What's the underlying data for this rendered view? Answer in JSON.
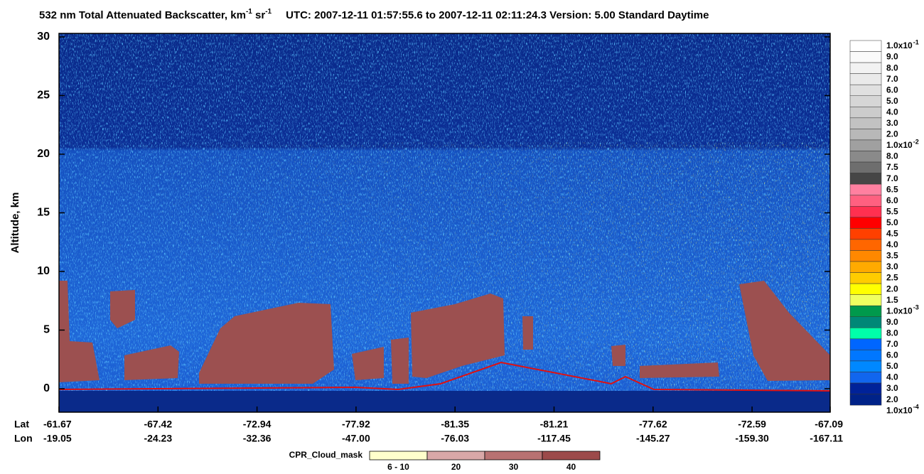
{
  "chart_data": {
    "type": "curtain",
    "title": [
      "532 nm Total Attenuated Backscatter, km",
      "-1",
      " sr",
      "-1"
    ],
    "subtitle": "UTC:  2007-12-11 01:57:55.6  to  2007-12-11 02:11:24.3    Version: 5.00  Standard  Daytime",
    "ylabel": "Altitude, km",
    "ylim": [
      -2,
      30.3
    ],
    "yticks": [
      0,
      5,
      10,
      15,
      20,
      25,
      30
    ],
    "lat_label": "Lat",
    "lon_label": "Lon",
    "lat": [
      "-61.67",
      "-67.42",
      "-72.94",
      "-77.92",
      "-81.35",
      "-81.21",
      "-77.62",
      "-72.59",
      "-67.09"
    ],
    "lon": [
      "-19.05",
      "-24.23",
      "-32.36",
      "-47.00",
      "-76.03",
      "-117.45",
      "-145.27",
      "-159.30",
      "-167.11"
    ],
    "colorbar": {
      "labels": [
        {
          "label": "1.0x10",
          "sup": "-1"
        },
        "9.0",
        "8.0",
        "7.0",
        "6.0",
        "5.0",
        "4.0",
        "3.0",
        "2.0",
        {
          "label": "1.0x10",
          "sup": "-2"
        },
        "8.0",
        "7.5",
        "7.0",
        "6.5",
        "6.0",
        "5.5",
        "5.0",
        "4.5",
        "4.0",
        "3.5",
        "3.0",
        "2.5",
        "2.0",
        "1.5",
        {
          "label": "1.0x10",
          "sup": "-3"
        },
        "9.0",
        "8.0",
        "7.0",
        "6.0",
        "5.0",
        "4.0",
        "3.0",
        "2.0",
        {
          "label": "1.0x10",
          "sup": "-4"
        }
      ],
      "colors": [
        "#ffffff",
        "#fafafa",
        "#f2f2f2",
        "#eaeaea",
        "#e0e0e0",
        "#d6d6d6",
        "#cccccc",
        "#c2c2c2",
        "#b8b8b8",
        "#a0a0a0",
        "#8a8a8a",
        "#6e6e6e",
        "#464646",
        "#ff80a0",
        "#ff6080",
        "#ff3050",
        "#ff0000",
        "#ff4000",
        "#ff6600",
        "#ff8800",
        "#ffaa00",
        "#ffcc00",
        "#ffff00",
        "#f0ff60",
        "#00994c",
        "#008877",
        "#00ffaa",
        "#0066ff",
        "#0077ff",
        "#0088ff",
        "#1166ee",
        "#002299",
        "#002288"
      ]
    },
    "cpr_legend": {
      "title": "CPR_Cloud_mask",
      "items": [
        {
          "label": "6 - 10",
          "color": "#ffffcc"
        },
        {
          "label": "20",
          "color": "#d9a8a8"
        },
        {
          "label": "30",
          "color": "#b87272"
        },
        {
          "label": "40",
          "color": "#9c4a4a"
        }
      ]
    }
  }
}
